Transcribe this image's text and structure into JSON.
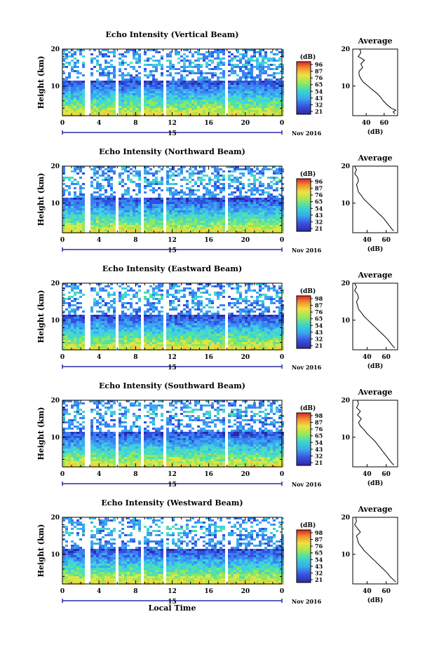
{
  "chart_data": [
    {
      "type": "heatmap",
      "title": "Echo Intensity (Vertical Beam)",
      "ylabel": "Height (km)",
      "ylim": [
        2,
        20
      ],
      "yticks": [
        "20",
        "10"
      ],
      "xlim": [
        0,
        24
      ],
      "xticks": [
        "0",
        "4",
        "8",
        "12",
        "16",
        "20",
        "0"
      ],
      "date_label": "15",
      "month_year": "Nov 2016",
      "colorbar": {
        "label": "(dB)",
        "ticks": [
          "96",
          "87",
          "76",
          "65",
          "54",
          "43",
          "32",
          "21"
        ]
      },
      "data_gaps_hours": [
        [
          2.4,
          2.8
        ],
        [
          5.8,
          6.1
        ],
        [
          8.5,
          8.8
        ],
        [
          10.9,
          11.2
        ],
        [
          17.7,
          18.0
        ]
      ],
      "average_profile": {
        "title": "Average",
        "xlabel": "(dB)",
        "xticks": [
          "40",
          "60"
        ],
        "xlim": [
          25,
          75
        ],
        "yticks": [
          "20",
          "10"
        ],
        "height_km": [
          2.5,
          3.0,
          3.5,
          4.0,
          5.0,
          6.0,
          7.0,
          8.0,
          9.0,
          10.0,
          11.0,
          12.0,
          13.0,
          14.0,
          15.0,
          16.0,
          17.0,
          18.0,
          19.0,
          20.0
        ],
        "db": [
          72,
          70,
          73,
          68,
          63,
          59,
          56,
          52,
          47,
          42,
          37,
          34,
          32,
          32,
          36,
          34,
          38,
          31,
          34,
          33
        ]
      }
    },
    {
      "type": "heatmap",
      "title": "Echo Intensity (Northward Beam)",
      "ylabel": "Height (km)",
      "ylim": [
        2,
        20
      ],
      "yticks": [
        "20",
        "10"
      ],
      "xlim": [
        0,
        24
      ],
      "xticks": [
        "0",
        "4",
        "8",
        "12",
        "16",
        "20",
        "0"
      ],
      "date_label": "15",
      "month_year": "Nov 2016",
      "colorbar": {
        "label": "(dB)",
        "ticks": [
          "96",
          "87",
          "76",
          "65",
          "54",
          "43",
          "32",
          "21"
        ]
      },
      "data_gaps_hours": [
        [
          2.4,
          2.8
        ],
        [
          5.8,
          6.1
        ],
        [
          8.5,
          8.8
        ],
        [
          10.9,
          11.2
        ],
        [
          17.7,
          18.0
        ]
      ],
      "average_profile": {
        "title": "Average",
        "xlabel": "(dB)",
        "xticks": [
          "40",
          "60"
        ],
        "xlim": [
          25,
          72
        ],
        "yticks": [
          "20",
          "10"
        ],
        "height_km": [
          2.5,
          3.0,
          4.0,
          5.0,
          6.0,
          7.0,
          8.0,
          9.0,
          10.0,
          11.0,
          12.0,
          13.0,
          14.0,
          15.0,
          16.0,
          17.0,
          18.0,
          19.0,
          20.0
        ],
        "db": [
          68,
          66,
          63,
          60,
          57,
          53,
          49,
          45,
          41,
          37,
          34,
          31,
          30,
          29,
          31,
          30,
          27,
          29,
          27
        ]
      }
    },
    {
      "type": "heatmap",
      "title": "Echo Intensity (Eastward Beam)",
      "ylabel": "Height (km)",
      "ylim": [
        2,
        20
      ],
      "yticks": [
        "20",
        "10"
      ],
      "xlim": [
        0,
        24
      ],
      "xticks": [
        "0",
        "4",
        "8",
        "12",
        "16",
        "20",
        "0"
      ],
      "date_label": "15",
      "month_year": "Nov 2016",
      "colorbar": {
        "label": "(dB)",
        "ticks": [
          "98",
          "87",
          "76",
          "65",
          "54",
          "43",
          "32",
          "21"
        ]
      },
      "data_gaps_hours": [
        [
          2.4,
          2.8
        ],
        [
          5.8,
          6.1
        ],
        [
          8.5,
          8.8
        ],
        [
          10.9,
          11.2
        ],
        [
          17.7,
          18.0
        ]
      ],
      "average_profile": {
        "title": "Average",
        "xlabel": "(dB)",
        "xticks": [
          "40",
          "60"
        ],
        "xlim": [
          25,
          72
        ],
        "yticks": [
          "20",
          "10"
        ],
        "height_km": [
          2.5,
          3.0,
          4.0,
          5.0,
          6.0,
          7.0,
          8.0,
          9.0,
          10.0,
          11.0,
          12.0,
          13.0,
          14.0,
          15.0,
          16.0,
          17.0,
          18.0,
          19.0,
          20.0
        ],
        "db": [
          69,
          67,
          64,
          61,
          57,
          53,
          49,
          45,
          41,
          37,
          34,
          31,
          30,
          29,
          31,
          30,
          27,
          29,
          27
        ]
      }
    },
    {
      "type": "heatmap",
      "title": "Echo Intensity (Southward Beam)",
      "ylabel": "Height (km)",
      "ylim": [
        2,
        20
      ],
      "yticks": [
        "20",
        "10"
      ],
      "xlim": [
        0,
        24
      ],
      "xticks": [
        "0",
        "4",
        "8",
        "12",
        "16",
        "20",
        "0"
      ],
      "date_label": "15",
      "month_year": "Nov 2016",
      "colorbar": {
        "label": "(dB)",
        "ticks": [
          "98",
          "87",
          "76",
          "65",
          "54",
          "43",
          "32",
          "21"
        ]
      },
      "data_gaps_hours": [
        [
          2.4,
          2.8
        ],
        [
          5.8,
          6.1
        ],
        [
          8.5,
          8.8
        ],
        [
          10.9,
          11.2
        ],
        [
          17.7,
          18.0
        ]
      ],
      "average_profile": {
        "title": "Average",
        "xlabel": "(dB)",
        "xticks": [
          "40",
          "60"
        ],
        "xlim": [
          25,
          72
        ],
        "yticks": [
          "20",
          "10"
        ],
        "height_km": [
          2.5,
          3.0,
          4.0,
          5.0,
          6.0,
          7.0,
          8.0,
          9.0,
          10.0,
          11.0,
          12.0,
          13.0,
          14.0,
          15.0,
          16.0,
          17.0,
          18.0,
          19.0,
          20.0
        ],
        "db": [
          68,
          66,
          63,
          60,
          57,
          54,
          51,
          48,
          44,
          40,
          37,
          33,
          31,
          34,
          30,
          33,
          29,
          31,
          30
        ]
      }
    },
    {
      "type": "heatmap",
      "title": "Echo Intensity (Westward Beam)",
      "ylabel": "Height (km)",
      "ylim": [
        2,
        20
      ],
      "yticks": [
        "20",
        "10"
      ],
      "xlim": [
        0,
        24
      ],
      "xticks": [
        "0",
        "4",
        "8",
        "12",
        "16",
        "20",
        "0"
      ],
      "xlabel": "Local Time",
      "date_label": "15",
      "month_year": "Nov 2016",
      "colorbar": {
        "label": "(dB)",
        "ticks": [
          "98",
          "87",
          "76",
          "65",
          "54",
          "43",
          "32",
          "21"
        ]
      },
      "data_gaps_hours": [
        [
          2.4,
          2.8
        ],
        [
          5.8,
          6.1
        ],
        [
          8.5,
          8.8
        ],
        [
          10.9,
          11.2
        ],
        [
          17.7,
          18.0
        ]
      ],
      "average_profile": {
        "title": "Average",
        "xlabel": "(dB)",
        "xticks": [
          "40",
          "60"
        ],
        "xlim": [
          25,
          72
        ],
        "yticks": [
          "20",
          "10"
        ],
        "height_km": [
          2.5,
          3.0,
          4.0,
          5.0,
          6.0,
          7.0,
          8.0,
          9.0,
          10.0,
          11.0,
          12.0,
          13.0,
          14.0,
          15.0,
          16.0,
          17.0,
          18.0,
          19.0,
          20.0
        ],
        "db": [
          70,
          68,
          64,
          61,
          57,
          53,
          49,
          45,
          41,
          37,
          34,
          31,
          30,
          29,
          33,
          30,
          27,
          29,
          28
        ]
      }
    }
  ]
}
